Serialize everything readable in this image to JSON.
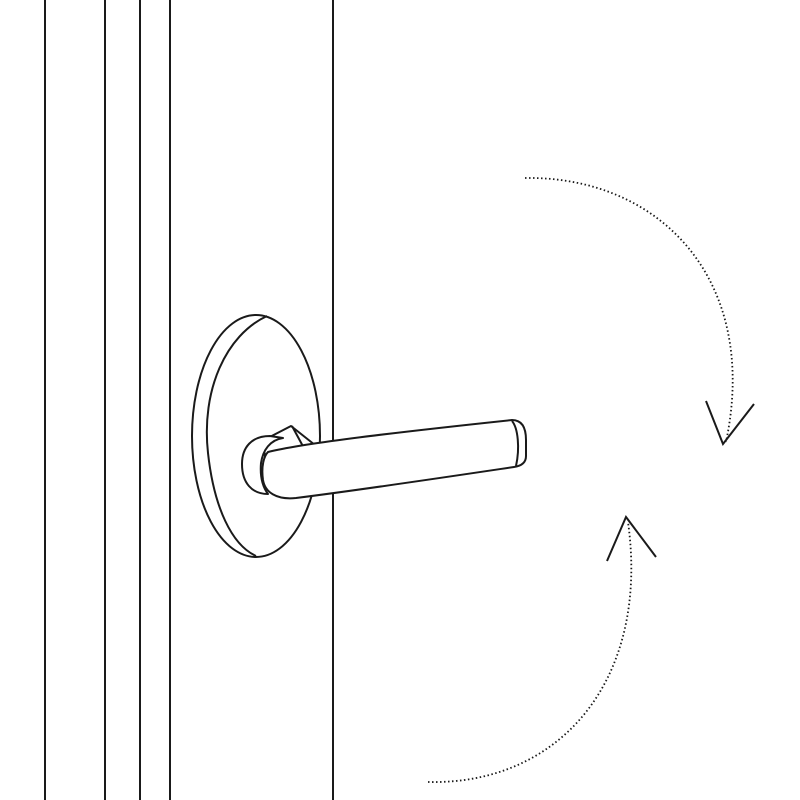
{
  "diagram": {
    "subject": "door-lever-handle",
    "rotation": "down-then-up",
    "colors": {
      "stroke": "#1a1a1a",
      "background": "#ffffff"
    }
  }
}
